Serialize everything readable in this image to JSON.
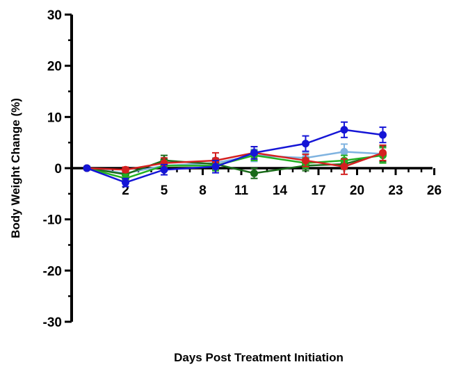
{
  "chart_data": {
    "type": "line",
    "title": "",
    "xlabel": "Days Post Treatment Initiation",
    "ylabel": "Body Weight Change (%)",
    "xlim": [
      -1,
      26
    ],
    "ylim": [
      -30,
      30
    ],
    "x_ticks": [
      2,
      5,
      8,
      11,
      14,
      17,
      20,
      23,
      26
    ],
    "x_tick_labels": [
      "2",
      "5",
      "8",
      "11",
      "14",
      "17",
      "20",
      "23",
      "26"
    ],
    "y_ticks": [
      -30,
      -20,
      -10,
      0,
      10,
      20,
      30
    ],
    "y_tick_labels": [
      "-30",
      "-20",
      "-10",
      "0",
      "10",
      "20",
      "30"
    ],
    "grid": false,
    "legend": "none",
    "series": [
      {
        "color": "#7fb3e0",
        "marker": "circle",
        "x": [
          -1,
          2,
          5,
          9,
          12,
          16,
          19,
          22
        ],
        "y": [
          0,
          -1.0,
          0.5,
          1.0,
          2.5,
          2.0,
          3.2,
          2.8
        ],
        "err": [
          0.3,
          0.8,
          1.0,
          1.0,
          1.2,
          1.0,
          1.5,
          1.5
        ]
      },
      {
        "color": "#1a6b1a",
        "marker": "circle",
        "x": [
          -1,
          2,
          5,
          9,
          12,
          16,
          19,
          22
        ],
        "y": [
          0,
          -1.2,
          1.5,
          0.8,
          -1.0,
          0.5,
          0.8,
          2.8
        ],
        "err": [
          0.3,
          0.8,
          1.0,
          1.0,
          1.0,
          1.0,
          1.0,
          1.5
        ]
      },
      {
        "color": "#22b022",
        "marker": "circle",
        "x": [
          -1,
          2,
          5,
          9,
          12,
          16,
          19,
          22
        ],
        "y": [
          0,
          -2.0,
          0.5,
          0.5,
          2.5,
          1.0,
          1.5,
          2.5
        ],
        "err": [
          0.3,
          0.8,
          1.0,
          1.0,
          1.0,
          1.0,
          1.0,
          1.5
        ]
      },
      {
        "color": "#d42020",
        "marker": "circle",
        "x": [
          -1,
          2,
          5,
          9,
          12,
          16,
          19,
          22
        ],
        "y": [
          0,
          -0.3,
          1.0,
          1.5,
          3.0,
          1.5,
          0.3,
          3.0
        ],
        "err": [
          0.3,
          0.5,
          1.0,
          1.5,
          1.2,
          1.2,
          1.5,
          1.5
        ]
      },
      {
        "color": "#1515d6",
        "marker": "circle",
        "x": [
          -1,
          2,
          5,
          9,
          12,
          16,
          19,
          22
        ],
        "y": [
          0,
          -2.8,
          -0.3,
          0.3,
          3.0,
          4.8,
          7.5,
          6.5
        ],
        "err": [
          0.3,
          0.8,
          1.0,
          1.2,
          1.2,
          1.5,
          1.5,
          1.5
        ]
      }
    ]
  }
}
